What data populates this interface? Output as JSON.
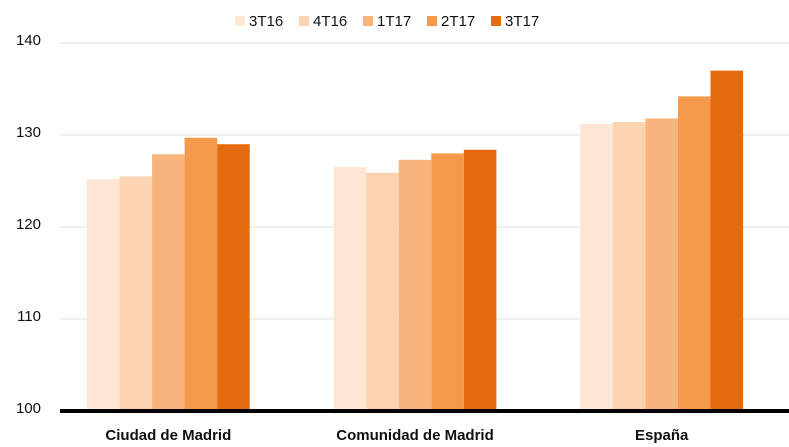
{
  "chart_data": {
    "type": "bar",
    "categories": [
      "Ciudad de Madrid",
      "Comunidad de Madrid",
      "España"
    ],
    "series": [
      {
        "name": "3T16",
        "color": "#fde6d3",
        "values": [
          125.2,
          126.5,
          131.2
        ]
      },
      {
        "name": "4T16",
        "color": "#fbd3b1",
        "values": [
          125.5,
          125.9,
          131.4
        ]
      },
      {
        "name": "1T17",
        "color": "#f8b47c",
        "values": [
          127.9,
          127.3,
          131.8
        ]
      },
      {
        "name": "2T17",
        "color": "#f59a4c",
        "values": [
          129.7,
          128.0,
          134.2
        ]
      },
      {
        "name": "3T17",
        "color": "#e56b0f",
        "values": [
          129.0,
          128.4,
          137.0
        ]
      }
    ],
    "ylim": [
      100,
      140
    ],
    "yticks": [
      100,
      110,
      120,
      130,
      140
    ],
    "grid": true,
    "legend": "top"
  }
}
